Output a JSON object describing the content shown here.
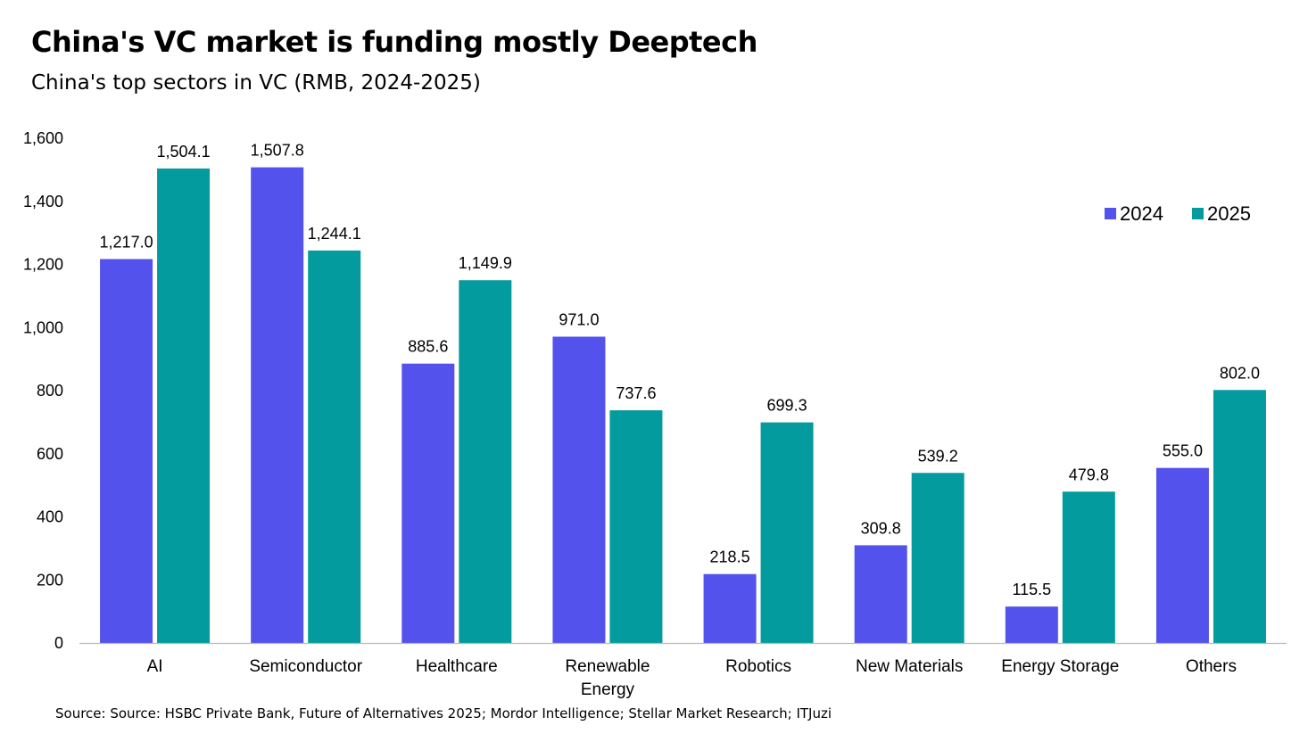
{
  "chart_data": {
    "type": "bar",
    "title": "China's VC market is funding mostly Deeptech",
    "subtitle": "China's top sectors in VC (RMB, 2024-2025)",
    "categories": [
      "AI",
      "Semiconductor",
      "Healthcare",
      "Renewable Energy",
      "Robotics",
      "New Materials",
      "Energy Storage",
      "Others"
    ],
    "series": [
      {
        "name": "2024",
        "color": "#5352EC",
        "values": [
          1217.0,
          1507.8,
          885.6,
          971.0,
          218.5,
          309.8,
          115.5,
          555.0
        ]
      },
      {
        "name": "2025",
        "color": "#039B9E",
        "values": [
          1504.1,
          1244.1,
          1149.9,
          737.6,
          699.3,
          539.2,
          479.8,
          802.0
        ]
      }
    ],
    "ylim": [
      0,
      1600
    ],
    "yticks": [
      0,
      200,
      400,
      600,
      800,
      1000,
      1200,
      1400,
      1600
    ],
    "grid": false,
    "legend_position": "top-right",
    "source": "Source: Source: HSBC Private Bank, Future of Alternatives 2025; Mordor Intelligence; Stellar Market Research; ITJuzi"
  }
}
